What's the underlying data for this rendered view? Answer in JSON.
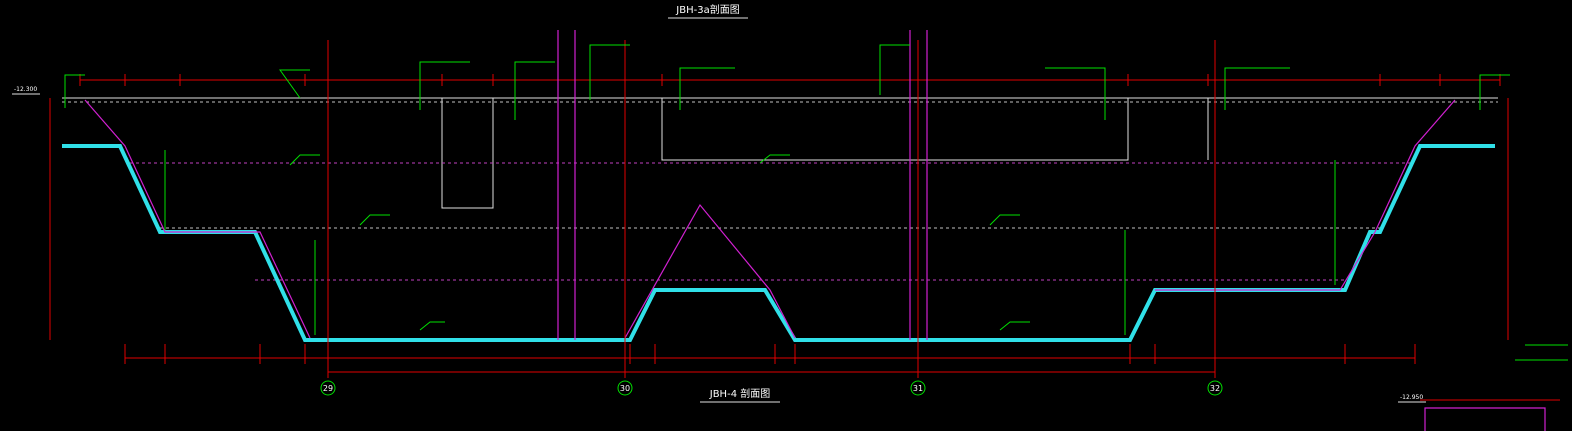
{
  "header": {
    "title": "JBH-3a剖面图"
  },
  "axes": [
    "29",
    "30",
    "31",
    "32"
  ],
  "footer": {
    "title": "JBH-4 剖面图"
  },
  "elevations": [
    "-12.300",
    "-12.950"
  ]
}
